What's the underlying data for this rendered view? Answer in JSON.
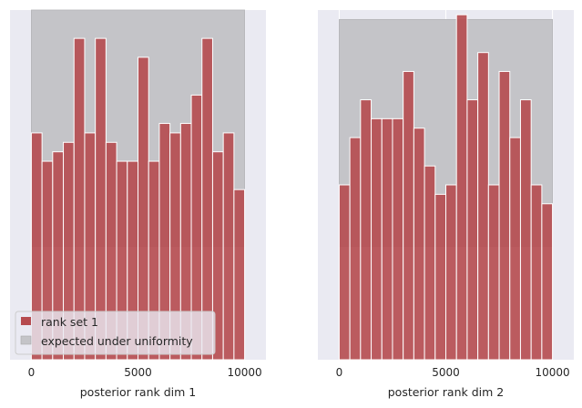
{
  "chart_data": [
    {
      "type": "bar",
      "xlabel": "posterior rank dim 1",
      "ylabel": "",
      "xlim": [
        -1000,
        11000
      ],
      "ylim": [
        0,
        37
      ],
      "xticks": [
        0,
        5000,
        10000
      ],
      "xtick_labels": [
        "0",
        "5000",
        "10000"
      ],
      "grid": true,
      "bin_edges": [
        0,
        500,
        1000,
        1500,
        2000,
        2500,
        3000,
        3500,
        4000,
        4500,
        5000,
        5500,
        6000,
        6500,
        7000,
        7500,
        8000,
        8500,
        9000,
        9500,
        10000
      ],
      "series": [
        {
          "name": "rank set 1",
          "color": "#b64b4f",
          "values": [
            24,
            21,
            22,
            23,
            34,
            24,
            34,
            23,
            21,
            21,
            32,
            21,
            25,
            24,
            25,
            28,
            34,
            22,
            24,
            18
          ]
        }
      ],
      "uniform_band": {
        "name": "expected under uniformity",
        "low": 12,
        "high": 37,
        "color": "#c4c4c8"
      },
      "legend": {
        "placement": "lower-left",
        "entries": [
          "rank set 1",
          "expected under uniformity"
        ]
      }
    },
    {
      "type": "bar",
      "xlabel": "posterior rank dim 2",
      "ylabel": "",
      "xlim": [
        -1000,
        11000
      ],
      "ylim": [
        0,
        37
      ],
      "xticks": [
        0,
        5000,
        10000
      ],
      "xtick_labels": [
        "0",
        "5000",
        "10000"
      ],
      "grid": true,
      "bin_edges": [
        0,
        500,
        1000,
        1500,
        2000,
        2500,
        3000,
        3500,
        4000,
        4500,
        5000,
        5500,
        6000,
        6500,
        7000,
        7500,
        8000,
        8500,
        9000,
        9500,
        10000
      ],
      "series": [
        {
          "name": "rank set 1",
          "color": "#b64b4f",
          "values": [
            18.5,
            23.5,
            27.5,
            25.5,
            25.5,
            25.5,
            30.5,
            24.5,
            20.5,
            17.5,
            18.5,
            36.5,
            27.5,
            32.5,
            18.5,
            30.5,
            23.5,
            27.5,
            18.5,
            16.5
          ]
        }
      ],
      "uniform_band": {
        "name": "expected under uniformity",
        "low": 12,
        "high": 36,
        "color": "#c4c4c8"
      }
    }
  ]
}
